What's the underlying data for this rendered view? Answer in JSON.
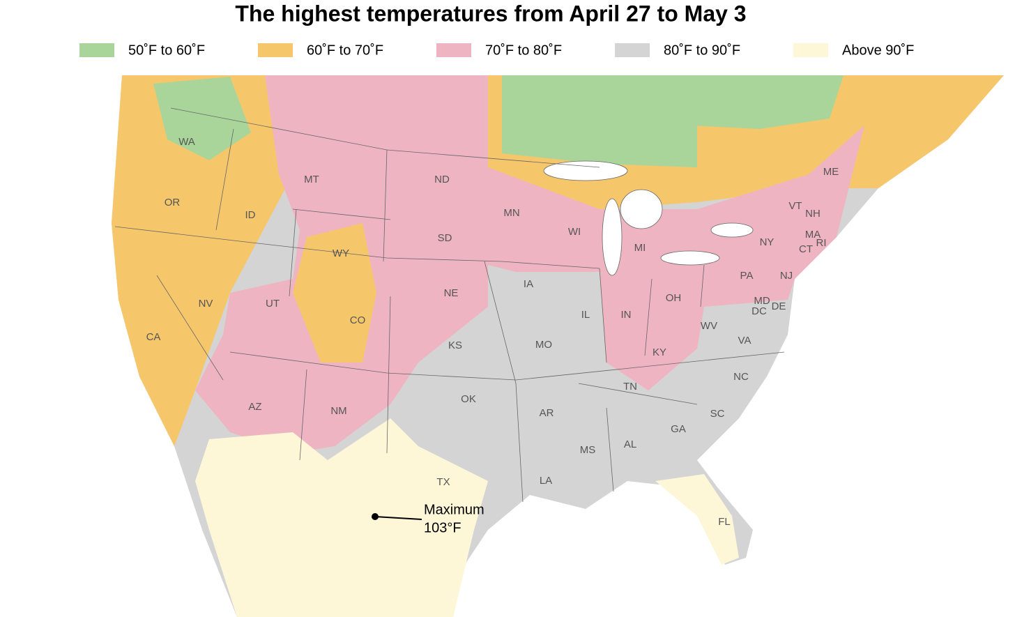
{
  "title": "The highest temperatures from April 27 to May 3",
  "legend": [
    {
      "label": "50˚F to 60˚F",
      "color": "#a9d59b"
    },
    {
      "label": "60˚F to 70˚F",
      "color": "#f6c66b"
    },
    {
      "label": "70˚F to 80˚F",
      "color": "#efb4c1"
    },
    {
      "label": "80˚F to 90˚F",
      "color": "#d4d4d4"
    },
    {
      "label": "Above 90˚F",
      "color": "#fdf7d7"
    }
  ],
  "states": [
    "WA",
    "OR",
    "ID",
    "MT",
    "ND",
    "SD",
    "WY",
    "NV",
    "UT",
    "CO",
    "CA",
    "AZ",
    "NM",
    "NE",
    "KS",
    "OK",
    "TX",
    "MN",
    "IA",
    "MO",
    "AR",
    "LA",
    "MS",
    "AL",
    "TN",
    "KY",
    "IL",
    "IN",
    "OH",
    "WI",
    "MI",
    "GA",
    "FL",
    "SC",
    "NC",
    "VA",
    "WV",
    "PA",
    "NY",
    "ME",
    "VT",
    "NH",
    "MA",
    "CT",
    "RI",
    "NJ",
    "MD",
    "DE",
    "DC"
  ],
  "annotation": {
    "line1": "Maximum",
    "line2": "103°F"
  }
}
